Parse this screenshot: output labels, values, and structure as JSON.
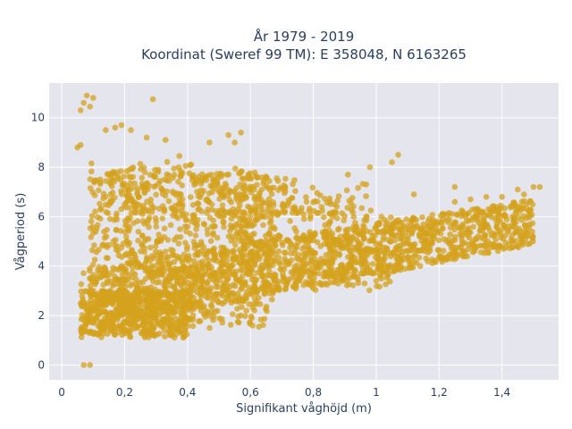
{
  "chart_data": {
    "type": "scatter",
    "title_line1": "År 1979 - 2019",
    "title_line2": "Koordinat (Sweref 99 TM): E 358048, N 6163265",
    "xlabel": "Signifikant våghöjd (m)",
    "ylabel": "Vågperiod (s)",
    "xlim": [
      -0.04,
      1.58
    ],
    "ylim": [
      -0.6,
      11.4
    ],
    "x_ticks": [
      0,
      0.2,
      0.4,
      0.6,
      0.8,
      1.0,
      1.2,
      1.4
    ],
    "x_tick_labels": [
      "0",
      "0,2",
      "0,4",
      "0,6",
      "0,8",
      "1",
      "1,2",
      "1,4"
    ],
    "y_ticks": [
      0,
      2,
      4,
      6,
      8,
      10
    ],
    "y_tick_labels": [
      "0",
      "2",
      "4",
      "6",
      "8",
      "10"
    ],
    "grid": true,
    "marker_color": "#D4A21C",
    "plot_background": "#E5E5EE",
    "outliers": [
      {
        "x": 0.08,
        "y": 10.9
      },
      {
        "x": 0.07,
        "y": 10.6
      },
      {
        "x": 0.1,
        "y": 10.8
      },
      {
        "x": 0.29,
        "y": 10.75
      },
      {
        "x": 0.06,
        "y": 10.3
      },
      {
        "x": 0.09,
        "y": 10.45
      },
      {
        "x": 0.07,
        "y": 0.0
      },
      {
        "x": 0.09,
        "y": 0.0
      },
      {
        "x": 1.5,
        "y": 7.2
      },
      {
        "x": 1.45,
        "y": 7.1
      },
      {
        "x": 1.4,
        "y": 6.8
      },
      {
        "x": 1.35,
        "y": 6.8
      },
      {
        "x": 1.47,
        "y": 6.9
      },
      {
        "x": 1.52,
        "y": 7.2
      },
      {
        "x": 1.3,
        "y": 6.7
      },
      {
        "x": 1.25,
        "y": 6.6
      },
      {
        "x": 0.53,
        "y": 9.3
      },
      {
        "x": 0.57,
        "y": 9.4
      },
      {
        "x": 0.47,
        "y": 9.0
      },
      {
        "x": 0.27,
        "y": 9.2
      },
      {
        "x": 0.17,
        "y": 9.6
      },
      {
        "x": 0.19,
        "y": 9.7
      },
      {
        "x": 0.14,
        "y": 9.5
      },
      {
        "x": 0.33,
        "y": 9.1
      },
      {
        "x": 0.55,
        "y": 9.0
      },
      {
        "x": 1.07,
        "y": 8.5
      },
      {
        "x": 1.05,
        "y": 8.2
      },
      {
        "x": 0.98,
        "y": 8.0
      },
      {
        "x": 0.91,
        "y": 7.7
      },
      {
        "x": 1.25,
        "y": 7.2
      },
      {
        "x": 1.12,
        "y": 6.9
      },
      {
        "x": 0.57,
        "y": 2.0
      },
      {
        "x": 1.0,
        "y": 3.4
      },
      {
        "x": 0.05,
        "y": 8.8
      },
      {
        "x": 0.06,
        "y": 8.9
      },
      {
        "x": 0.22,
        "y": 9.5
      }
    ]
  }
}
